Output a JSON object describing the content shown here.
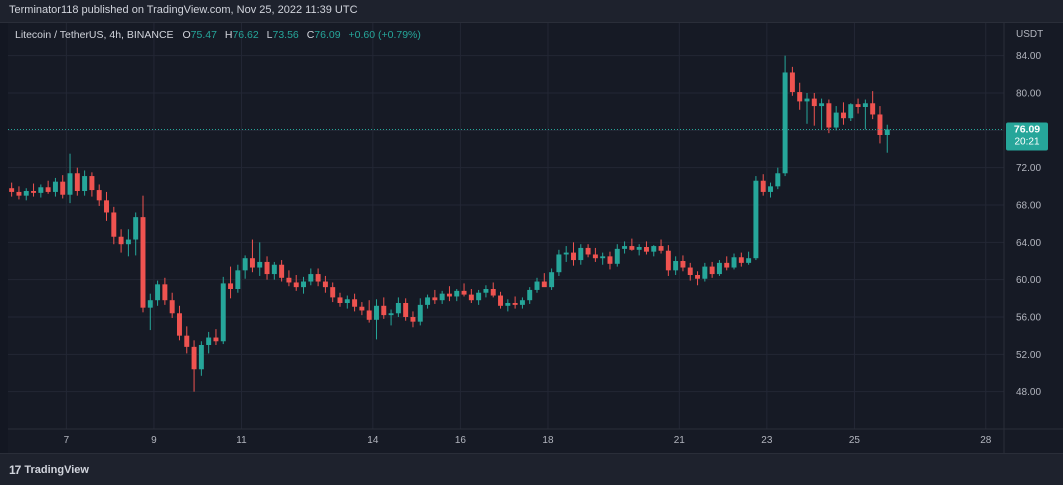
{
  "header": {
    "text": "Terminator118 published on TradingView.com, Nov 25, 2022 11:39 UTC"
  },
  "legend": {
    "symbol": "Litecoin / TetherUS, 4h, BINANCE",
    "o_label": "O",
    "o_value": "75.47",
    "h_label": "H",
    "h_value": "76.62",
    "l_label": "L",
    "l_value": "73.56",
    "c_label": "C",
    "c_value": "76.09",
    "change": "+0.60 (+0.79%)"
  },
  "price_badge": {
    "price": "76.09",
    "countdown": "20:21"
  },
  "footer": {
    "logo_mark": "17",
    "logo_text": "TradingView"
  },
  "colors": {
    "up": "#26a69a",
    "down": "#ef5350",
    "grid": "#232735",
    "axis_text": "#b2b5be",
    "price_line": "#26a69a"
  },
  "chart_data": {
    "type": "candlestick",
    "currency_label": "USDT",
    "y_ticks": [
      "84.00",
      "80.00",
      "76.00",
      "72.00",
      "68.00",
      "64.00",
      "60.00",
      "56.00",
      "52.00",
      "48.00"
    ],
    "ylim": [
      44.0,
      87.5
    ],
    "x_ticks": [
      {
        "label": "7",
        "index": 7.5
      },
      {
        "label": "9",
        "index": 19.5
      },
      {
        "label": "11",
        "index": 31.5
      },
      {
        "label": "14",
        "index": 49.5
      },
      {
        "label": "16",
        "index": 61.5
      },
      {
        "label": "18",
        "index": 73.5
      },
      {
        "label": "21",
        "index": 91.5
      },
      {
        "label": "23",
        "index": 103.5
      },
      {
        "label": "25",
        "index": 115.5
      },
      {
        "label": "28",
        "index": 133.5
      }
    ],
    "x_range": [
      -0.5,
      136
    ],
    "last_price": 76.09,
    "candles": [
      [
        69.8,
        70.4,
        68.9,
        69.4
      ],
      [
        69.4,
        70.0,
        68.6,
        69.0
      ],
      [
        69.0,
        69.8,
        68.5,
        69.5
      ],
      [
        69.5,
        70.3,
        68.9,
        69.3
      ],
      [
        69.3,
        70.2,
        68.8,
        69.9
      ],
      [
        69.9,
        70.6,
        69.2,
        69.4
      ],
      [
        69.4,
        70.9,
        68.9,
        70.5
      ],
      [
        70.5,
        71.2,
        68.7,
        69.1
      ],
      [
        69.1,
        73.5,
        68.2,
        71.4
      ],
      [
        71.4,
        72.0,
        69.0,
        69.5
      ],
      [
        69.5,
        71.7,
        69.0,
        71.1
      ],
      [
        71.1,
        71.5,
        68.9,
        69.6
      ],
      [
        69.6,
        70.2,
        67.9,
        68.5
      ],
      [
        68.5,
        69.4,
        66.3,
        67.2
      ],
      [
        67.2,
        67.8,
        63.8,
        64.6
      ],
      [
        64.6,
        65.4,
        62.9,
        63.8
      ],
      [
        63.8,
        65.4,
        62.5,
        64.3
      ],
      [
        64.3,
        67.2,
        62.6,
        66.7
      ],
      [
        66.7,
        69.0,
        56.5,
        57.0
      ],
      [
        57.0,
        58.5,
        54.6,
        57.8
      ],
      [
        57.8,
        59.9,
        57.2,
        59.5
      ],
      [
        59.5,
        60.2,
        57.3,
        57.8
      ],
      [
        57.8,
        58.6,
        55.9,
        56.4
      ],
      [
        56.4,
        57.2,
        53.5,
        54.0
      ],
      [
        54.0,
        55.0,
        52.1,
        52.8
      ],
      [
        52.8,
        53.5,
        48.0,
        50.4
      ],
      [
        50.4,
        53.4,
        49.7,
        53.0
      ],
      [
        53.0,
        54.4,
        52.1,
        53.8
      ],
      [
        53.8,
        54.7,
        53.0,
        53.4
      ],
      [
        53.4,
        60.3,
        53.1,
        59.6
      ],
      [
        59.6,
        61.4,
        58.0,
        59.0
      ],
      [
        59.0,
        61.6,
        58.6,
        61.0
      ],
      [
        61.0,
        62.6,
        60.1,
        62.3
      ],
      [
        62.3,
        64.3,
        60.8,
        61.3
      ],
      [
        61.3,
        64.0,
        60.4,
        61.9
      ],
      [
        61.9,
        62.5,
        60.0,
        60.6
      ],
      [
        60.6,
        61.9,
        60.0,
        61.6
      ],
      [
        61.6,
        62.1,
        59.8,
        60.2
      ],
      [
        60.2,
        61.0,
        59.3,
        59.7
      ],
      [
        59.7,
        60.5,
        58.8,
        59.2
      ],
      [
        59.2,
        60.3,
        58.5,
        59.8
      ],
      [
        59.8,
        61.2,
        59.4,
        60.6
      ],
      [
        60.6,
        61.2,
        59.3,
        59.8
      ],
      [
        59.8,
        60.4,
        58.6,
        59.2
      ],
      [
        59.2,
        59.7,
        57.6,
        58.1
      ],
      [
        58.1,
        58.6,
        57.1,
        57.5
      ],
      [
        57.5,
        58.3,
        56.9,
        57.9
      ],
      [
        57.9,
        58.5,
        56.6,
        57.1
      ],
      [
        57.1,
        57.6,
        56.2,
        56.7
      ],
      [
        56.7,
        57.8,
        55.4,
        55.7
      ],
      [
        55.7,
        57.9,
        53.6,
        57.2
      ],
      [
        57.2,
        58.1,
        55.8,
        56.2
      ],
      [
        56.2,
        56.8,
        55.1,
        56.4
      ],
      [
        56.4,
        58.1,
        56.0,
        57.5
      ],
      [
        57.5,
        58.0,
        55.6,
        56.0
      ],
      [
        56.0,
        56.6,
        54.9,
        55.5
      ],
      [
        55.5,
        58.0,
        55.1,
        57.3
      ],
      [
        57.3,
        58.4,
        56.9,
        58.1
      ],
      [
        58.1,
        58.9,
        57.4,
        57.8
      ],
      [
        57.8,
        58.8,
        57.4,
        58.5
      ],
      [
        58.5,
        59.3,
        57.7,
        58.2
      ],
      [
        58.2,
        59.0,
        57.7,
        58.8
      ],
      [
        58.8,
        59.6,
        58.2,
        58.4
      ],
      [
        58.4,
        59.0,
        57.5,
        57.8
      ],
      [
        57.8,
        58.9,
        57.3,
        58.6
      ],
      [
        58.6,
        59.4,
        58.1,
        59.0
      ],
      [
        59.0,
        59.7,
        58.1,
        58.3
      ],
      [
        58.3,
        58.7,
        56.9,
        57.2
      ],
      [
        57.2,
        57.9,
        56.6,
        57.5
      ],
      [
        57.5,
        58.2,
        56.9,
        57.3
      ],
      [
        57.3,
        58.1,
        56.9,
        57.8
      ],
      [
        57.8,
        59.2,
        57.4,
        58.9
      ],
      [
        58.9,
        60.2,
        58.6,
        59.8
      ],
      [
        59.8,
        60.7,
        59.3,
        59.2
      ],
      [
        59.2,
        61.2,
        58.9,
        60.8
      ],
      [
        60.8,
        63.2,
        60.4,
        62.7
      ],
      [
        62.7,
        63.6,
        61.9,
        62.9
      ],
      [
        62.9,
        64.0,
        61.5,
        62.1
      ],
      [
        62.1,
        63.8,
        61.6,
        63.4
      ],
      [
        63.4,
        63.8,
        62.4,
        62.7
      ],
      [
        62.7,
        63.4,
        61.9,
        62.3
      ],
      [
        62.3,
        62.9,
        61.6,
        62.5
      ],
      [
        62.5,
        63.0,
        61.1,
        61.7
      ],
      [
        61.7,
        63.8,
        61.4,
        63.3
      ],
      [
        63.3,
        64.1,
        62.8,
        63.6
      ],
      [
        63.6,
        64.4,
        63.1,
        63.2
      ],
      [
        63.2,
        63.8,
        62.6,
        63.5
      ],
      [
        63.5,
        64.1,
        62.7,
        63.0
      ],
      [
        63.0,
        63.7,
        62.5,
        63.6
      ],
      [
        63.6,
        64.3,
        62.8,
        63.1
      ],
      [
        63.1,
        63.7,
        60.4,
        61.0
      ],
      [
        61.0,
        62.5,
        60.5,
        62.0
      ],
      [
        62.0,
        62.6,
        60.9,
        61.3
      ],
      [
        61.3,
        61.8,
        59.9,
        60.5
      ],
      [
        60.5,
        60.9,
        59.4,
        60.1
      ],
      [
        60.1,
        61.8,
        59.8,
        61.4
      ],
      [
        61.4,
        61.9,
        60.2,
        60.6
      ],
      [
        60.6,
        62.1,
        60.4,
        61.8
      ],
      [
        61.8,
        62.5,
        61.0,
        61.3
      ],
      [
        61.3,
        62.8,
        61.1,
        62.4
      ],
      [
        62.4,
        62.9,
        61.4,
        61.8
      ],
      [
        61.8,
        63.0,
        61.6,
        62.3
      ],
      [
        62.3,
        71.1,
        62.1,
        70.6
      ],
      [
        70.6,
        71.3,
        69.0,
        69.4
      ],
      [
        69.4,
        70.4,
        68.8,
        70.0
      ],
      [
        70.0,
        72.0,
        69.7,
        71.4
      ],
      [
        71.4,
        84.0,
        71.1,
        82.2
      ],
      [
        82.2,
        82.8,
        79.7,
        80.1
      ],
      [
        80.1,
        81.1,
        78.2,
        79.1
      ],
      [
        79.1,
        80.0,
        76.7,
        79.4
      ],
      [
        79.4,
        80.0,
        76.5,
        78.6
      ],
      [
        78.6,
        79.4,
        76.1,
        78.9
      ],
      [
        78.9,
        79.3,
        75.7,
        76.3
      ],
      [
        76.3,
        78.6,
        76.0,
        77.9
      ],
      [
        77.9,
        79.0,
        76.6,
        77.3
      ],
      [
        77.3,
        78.9,
        77.0,
        78.8
      ],
      [
        78.8,
        79.4,
        77.8,
        78.5
      ],
      [
        78.5,
        79.3,
        76.1,
        78.9
      ],
      [
        78.9,
        80.2,
        77.2,
        77.7
      ],
      [
        77.7,
        78.6,
        74.6,
        75.5
      ],
      [
        75.5,
        76.6,
        73.6,
        76.1
      ]
    ]
  }
}
